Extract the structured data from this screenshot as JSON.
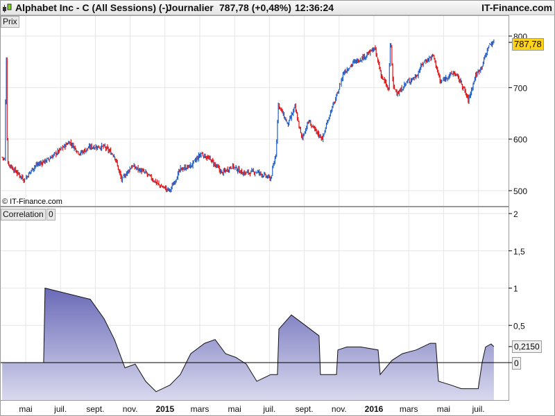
{
  "header": {
    "title": "Alphabet Inc - C (All Sessions) (-)",
    "period": "Journalier",
    "price": "787,78 (+0,48%)",
    "time": "12:36:24",
    "brand": "IT-Finance.com"
  },
  "price_panel": {
    "label": "Prix",
    "copyright": "© IT-Finance.com",
    "last_value": "787,78",
    "y_ticks": [
      "800",
      "700",
      "600",
      "500"
    ]
  },
  "indicator_panel": {
    "label": "Correlation",
    "param": "0",
    "last_value": "0,2150",
    "zero_label": "0",
    "y_ticks": [
      "2",
      "1,5",
      "1",
      "0,5",
      "0"
    ]
  },
  "colors": {
    "up": "#1f5fc8",
    "down": "#e01010",
    "fill_top": "#6a6ab8",
    "fill_bottom": "#d8d8ee",
    "tag": "#ffd21a"
  },
  "x_labels": [
    {
      "m": 4,
      "t": "mai"
    },
    {
      "m": 6,
      "t": "juil."
    },
    {
      "m": 8,
      "t": "sept."
    },
    {
      "m": 10,
      "t": "nov."
    },
    {
      "m": 12,
      "t": "2015",
      "bold": true
    },
    {
      "m": 14,
      "t": "mars"
    },
    {
      "m": 16,
      "t": "mai"
    },
    {
      "m": 18,
      "t": "juil."
    },
    {
      "m": 20,
      "t": "sept."
    },
    {
      "m": 22,
      "t": "nov."
    },
    {
      "m": 24,
      "t": "2016",
      "bold": true
    },
    {
      "m": 26,
      "t": "mars"
    },
    {
      "m": 28,
      "t": "mai"
    },
    {
      "m": 30,
      "t": "juil."
    }
  ],
  "chart_data": [
    {
      "type": "candlestick",
      "title": "Prix",
      "x_unit": "months since 2014-01",
      "ylim": [
        470,
        840
      ],
      "points": [
        [
          2.65,
          565
        ],
        [
          2.8,
          560
        ],
        [
          2.88,
          783
        ],
        [
          2.95,
          555
        ],
        [
          3.32,
          541
        ],
        [
          3.92,
          521
        ],
        [
          4.52,
          548
        ],
        [
          5.31,
          561
        ],
        [
          5.91,
          577
        ],
        [
          6.51,
          595
        ],
        [
          7.11,
          572
        ],
        [
          7.71,
          585
        ],
        [
          8.5,
          585
        ],
        [
          9.1,
          568
        ],
        [
          9.5,
          521
        ],
        [
          10.1,
          548
        ],
        [
          10.89,
          534
        ],
        [
          11.69,
          510
        ],
        [
          12.29,
          500
        ],
        [
          12.88,
          541
        ],
        [
          13.48,
          548
        ],
        [
          14.08,
          572
        ],
        [
          14.68,
          558
        ],
        [
          15.28,
          534
        ],
        [
          15.87,
          548
        ],
        [
          16.47,
          534
        ],
        [
          17.27,
          537
        ],
        [
          18.07,
          523
        ],
        [
          18.38,
          574
        ],
        [
          18.5,
          668
        ],
        [
          19.06,
          628
        ],
        [
          19.46,
          662
        ],
        [
          19.86,
          601
        ],
        [
          20.25,
          635
        ],
        [
          20.65,
          615
        ],
        [
          21.05,
          601
        ],
        [
          21.45,
          648
        ],
        [
          21.85,
          682
        ],
        [
          22.25,
          729
        ],
        [
          22.85,
          749
        ],
        [
          23.24,
          756
        ],
        [
          23.64,
          765
        ],
        [
          24.04,
          776
        ],
        [
          24.44,
          722
        ],
        [
          24.84,
          695
        ],
        [
          24.95,
          800
        ],
        [
          25.1,
          700
        ],
        [
          25.43,
          689
        ],
        [
          25.83,
          709
        ],
        [
          26.43,
          722
        ],
        [
          26.83,
          749
        ],
        [
          27.42,
          762
        ],
        [
          27.82,
          709
        ],
        [
          28.22,
          722
        ],
        [
          28.62,
          729
        ],
        [
          29.02,
          709
        ],
        [
          29.42,
          675
        ],
        [
          29.82,
          722
        ],
        [
          30.21,
          743
        ],
        [
          30.61,
          783
        ],
        [
          30.89,
          788
        ]
      ]
    },
    {
      "type": "area",
      "title": "Correlation",
      "x_unit": "months since 2014-01",
      "ylim": [
        -0.5,
        2.1
      ],
      "points": [
        [
          2.65,
          0
        ],
        [
          5.03,
          0
        ],
        [
          5.11,
          1.0
        ],
        [
          7.71,
          0.85
        ],
        [
          8.5,
          0.59
        ],
        [
          9.1,
          0.31
        ],
        [
          9.7,
          -0.07
        ],
        [
          10.29,
          -0.02
        ],
        [
          10.89,
          -0.25
        ],
        [
          11.49,
          -0.39
        ],
        [
          12.29,
          -0.3
        ],
        [
          12.88,
          -0.16
        ],
        [
          13.48,
          0.12
        ],
        [
          14.28,
          0.26
        ],
        [
          14.88,
          0.31
        ],
        [
          15.48,
          0.12
        ],
        [
          16.07,
          0.07
        ],
        [
          16.67,
          -0.02
        ],
        [
          17.27,
          -0.25
        ],
        [
          18.07,
          -0.16
        ],
        [
          18.46,
          -0.16
        ],
        [
          18.54,
          0.45
        ],
        [
          19.26,
          0.64
        ],
        [
          20.06,
          0.5
        ],
        [
          20.85,
          0.36
        ],
        [
          20.93,
          -0.16
        ],
        [
          21.85,
          -0.16
        ],
        [
          21.93,
          0.17
        ],
        [
          22.45,
          0.21
        ],
        [
          23.24,
          0.21
        ],
        [
          24.24,
          0.17
        ],
        [
          24.36,
          -0.16
        ],
        [
          25.03,
          0.03
        ],
        [
          25.63,
          0.12
        ],
        [
          26.43,
          0.17
        ],
        [
          27.23,
          0.26
        ],
        [
          27.55,
          0.26
        ],
        [
          27.71,
          -0.25
        ],
        [
          28.42,
          -0.3
        ],
        [
          29.02,
          -0.35
        ],
        [
          29.99,
          -0.35
        ],
        [
          30.21,
          0
        ],
        [
          30.41,
          0.21
        ],
        [
          30.73,
          0.25
        ],
        [
          30.89,
          0.215
        ]
      ]
    }
  ]
}
